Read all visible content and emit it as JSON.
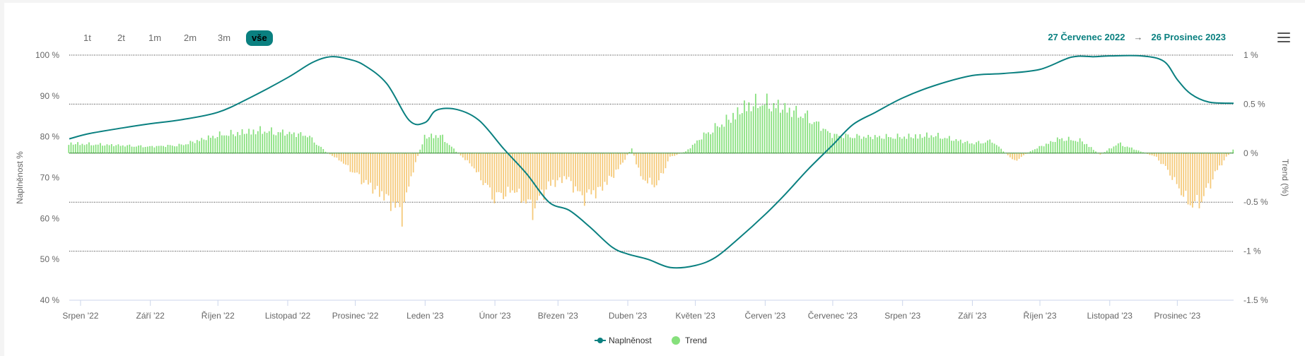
{
  "range_buttons": [
    {
      "label": "1t"
    },
    {
      "label": "2t"
    },
    {
      "label": "1m"
    },
    {
      "label": "2m"
    },
    {
      "label": "3m"
    },
    {
      "label": "vše",
      "active": true
    }
  ],
  "date_range": {
    "from": "27 Červenec 2022",
    "arrow": "→",
    "to": "26 Prosinec 2023"
  },
  "menu_icon": "hamburger-menu-icon",
  "colors": {
    "line": "#0a8080",
    "trend_positive": "#86e07c",
    "trend_negative": "#f5c978",
    "grid": "#333333",
    "axis_text": "#666666"
  },
  "chart_data": {
    "type": "line+bar",
    "x_range": [
      "2022-07-27",
      "2023-12-26"
    ],
    "x_ticks": [
      {
        "date": "2022-08-01",
        "label": "Srpen '22"
      },
      {
        "date": "2022-09-01",
        "label": "Září '22"
      },
      {
        "date": "2022-10-01",
        "label": "Říjen '22"
      },
      {
        "date": "2022-11-01",
        "label": "Listopad '22"
      },
      {
        "date": "2022-12-01",
        "label": "Prosinec '22"
      },
      {
        "date": "2023-01-01",
        "label": "Leden '23"
      },
      {
        "date": "2023-02-01",
        "label": "Únor '23"
      },
      {
        "date": "2023-03-01",
        "label": "Březen '23"
      },
      {
        "date": "2023-04-01",
        "label": "Duben '23"
      },
      {
        "date": "2023-05-01",
        "label": "Květen '23"
      },
      {
        "date": "2023-06-01",
        "label": "Červen '23"
      },
      {
        "date": "2023-07-01",
        "label": "Červenec '23"
      },
      {
        "date": "2023-08-01",
        "label": "Srpen '23"
      },
      {
        "date": "2023-09-01",
        "label": "Září '23"
      },
      {
        "date": "2023-10-01",
        "label": "Říjen '23"
      },
      {
        "date": "2023-11-01",
        "label": "Listopad '23"
      },
      {
        "date": "2023-12-01",
        "label": "Prosinec '23"
      }
    ],
    "y_left": {
      "label": "Naplněnost %",
      "min": 40,
      "max": 100,
      "ticks": [
        40,
        50,
        60,
        70,
        80,
        90,
        100
      ],
      "tick_labels": [
        "40 %",
        "50 %",
        "60 %",
        "70 %",
        "80 %",
        "90 %",
        "100 %"
      ]
    },
    "y_right": {
      "label": "Trend (%)",
      "min": -1.5,
      "max": 1,
      "ticks": [
        -1.5,
        -1,
        -0.5,
        0,
        0.5,
        1
      ],
      "tick_labels": [
        "-1.5 %",
        "-1 %",
        "-0.5 %",
        "0 %",
        "0.5 %",
        "1 %"
      ]
    },
    "grid": true,
    "legend": {
      "placement": "bottom-center",
      "items": [
        {
          "label": "Naplněnost",
          "type": "line"
        },
        {
          "label": "Trend",
          "type": "bar"
        }
      ]
    },
    "series": [
      {
        "name": "Naplněnost",
        "axis": "left",
        "type": "line",
        "points": [
          [
            "2022-07-27",
            79.5
          ],
          [
            "2022-08-05",
            80.8
          ],
          [
            "2022-08-20",
            82.2
          ],
          [
            "2022-09-01",
            83.2
          ],
          [
            "2022-09-15",
            84.2
          ],
          [
            "2022-10-01",
            86.0
          ],
          [
            "2022-10-15",
            89.5
          ],
          [
            "2022-11-01",
            94.5
          ],
          [
            "2022-11-12",
            98.2
          ],
          [
            "2022-11-20",
            99.6
          ],
          [
            "2022-11-28",
            99.0
          ],
          [
            "2022-12-05",
            97.5
          ],
          [
            "2022-12-15",
            93.0
          ],
          [
            "2022-12-25",
            84.0
          ],
          [
            "2023-01-01",
            83.5
          ],
          [
            "2023-01-06",
            86.5
          ],
          [
            "2023-01-15",
            86.7
          ],
          [
            "2023-01-25",
            84.0
          ],
          [
            "2023-02-05",
            77.0
          ],
          [
            "2023-02-15",
            71.0
          ],
          [
            "2023-02-25",
            64.0
          ],
          [
            "2023-03-06",
            62.0
          ],
          [
            "2023-03-15",
            58.0
          ],
          [
            "2023-03-25",
            53.0
          ],
          [
            "2023-04-01",
            51.3
          ],
          [
            "2023-04-10",
            50.0
          ],
          [
            "2023-04-20",
            48.0
          ],
          [
            "2023-05-01",
            48.5
          ],
          [
            "2023-05-10",
            50.5
          ],
          [
            "2023-05-20",
            55.0
          ],
          [
            "2023-06-01",
            61.0
          ],
          [
            "2023-06-10",
            66.0
          ],
          [
            "2023-06-20",
            72.0
          ],
          [
            "2023-07-01",
            78.0
          ],
          [
            "2023-07-10",
            83.0
          ],
          [
            "2023-07-20",
            86.0
          ],
          [
            "2023-08-01",
            89.5
          ],
          [
            "2023-08-15",
            92.5
          ],
          [
            "2023-09-01",
            95.0
          ],
          [
            "2023-09-15",
            95.5
          ],
          [
            "2023-10-01",
            96.5
          ],
          [
            "2023-10-15",
            99.5
          ],
          [
            "2023-10-25",
            99.6
          ],
          [
            "2023-11-01",
            99.8
          ],
          [
            "2023-11-15",
            99.8
          ],
          [
            "2023-11-25",
            98.5
          ],
          [
            "2023-12-01",
            94.0
          ],
          [
            "2023-12-07",
            90.5
          ],
          [
            "2023-12-15",
            88.5
          ],
          [
            "2023-12-26",
            88.2
          ]
        ]
      },
      {
        "name": "Trend",
        "axis": "right",
        "type": "bar",
        "segments": [
          [
            "2022-07-27",
            0.12
          ],
          [
            "2022-08-15",
            0.1
          ],
          [
            "2022-09-01",
            0.08
          ],
          [
            "2022-09-15",
            0.1
          ],
          [
            "2022-10-01",
            0.22
          ],
          [
            "2022-10-20",
            0.28
          ],
          [
            "2022-11-10",
            0.22
          ],
          [
            "2022-11-18",
            0.02
          ],
          [
            "2022-11-25",
            -0.1
          ],
          [
            "2022-12-05",
            -0.35
          ],
          [
            "2022-12-15",
            -0.55
          ],
          [
            "2022-12-22",
            -0.75
          ],
          [
            "2022-12-27",
            -0.2
          ],
          [
            "2023-01-01",
            0.2
          ],
          [
            "2023-01-08",
            0.22
          ],
          [
            "2023-01-15",
            0.02
          ],
          [
            "2023-01-22",
            -0.15
          ],
          [
            "2023-02-01",
            -0.55
          ],
          [
            "2023-02-10",
            -0.45
          ],
          [
            "2023-02-18",
            -0.7
          ],
          [
            "2023-02-25",
            -0.4
          ],
          [
            "2023-03-05",
            -0.3
          ],
          [
            "2023-03-12",
            -0.55
          ],
          [
            "2023-03-20",
            -0.45
          ],
          [
            "2023-03-28",
            -0.2
          ],
          [
            "2023-04-03",
            0.06
          ],
          [
            "2023-04-07",
            -0.3
          ],
          [
            "2023-04-14",
            -0.4
          ],
          [
            "2023-04-20",
            -0.05
          ],
          [
            "2023-04-27",
            0.02
          ],
          [
            "2023-05-05",
            0.22
          ],
          [
            "2023-05-15",
            0.4
          ],
          [
            "2023-05-25",
            0.6
          ],
          [
            "2023-06-01",
            0.62
          ],
          [
            "2023-06-10",
            0.55
          ],
          [
            "2023-06-20",
            0.45
          ],
          [
            "2023-07-01",
            0.22
          ],
          [
            "2023-07-15",
            0.2
          ],
          [
            "2023-08-01",
            0.2
          ],
          [
            "2023-08-15",
            0.22
          ],
          [
            "2023-09-01",
            0.12
          ],
          [
            "2023-09-10",
            0.15
          ],
          [
            "2023-09-20",
            -0.1
          ],
          [
            "2023-09-28",
            0.04
          ],
          [
            "2023-10-10",
            0.18
          ],
          [
            "2023-10-20",
            0.15
          ],
          [
            "2023-10-28",
            -0.02
          ],
          [
            "2023-11-05",
            0.12
          ],
          [
            "2023-11-15",
            0.02
          ],
          [
            "2023-11-22",
            -0.05
          ],
          [
            "2023-11-28",
            -0.25
          ],
          [
            "2023-12-03",
            -0.48
          ],
          [
            "2023-12-08",
            -0.65
          ],
          [
            "2023-12-13",
            -0.55
          ],
          [
            "2023-12-18",
            -0.25
          ],
          [
            "2023-12-23",
            -0.05
          ],
          [
            "2023-12-26",
            0.04
          ]
        ]
      }
    ]
  }
}
